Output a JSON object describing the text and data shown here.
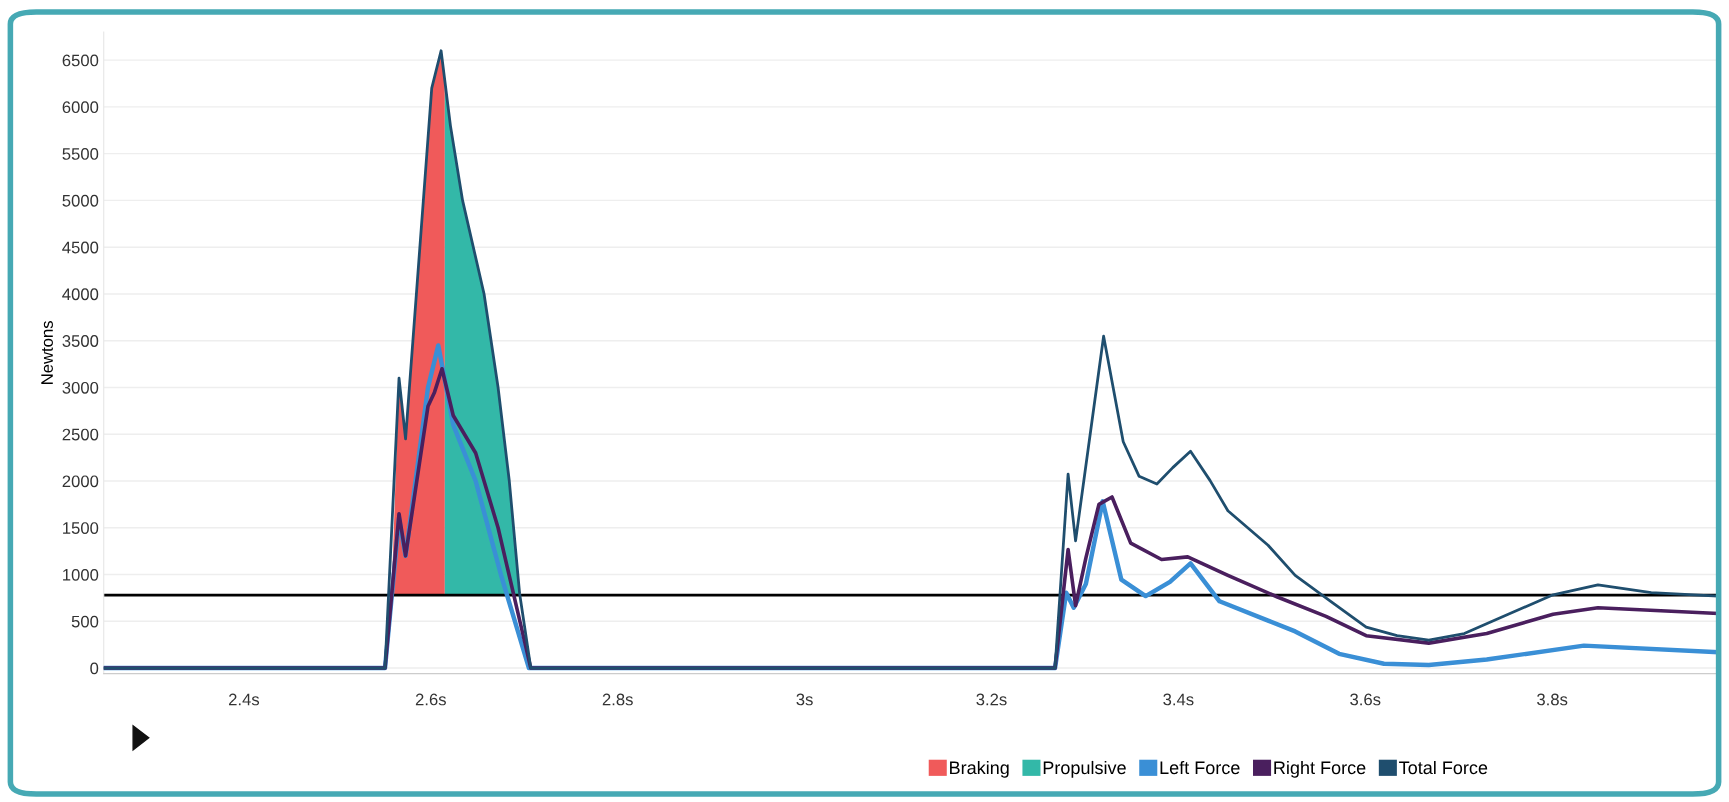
{
  "chart_data": {
    "type": "line",
    "ylabel": "Newtons",
    "xlim": [
      2.25,
      3.98
    ],
    "ylim": [
      -60,
      6800
    ],
    "xticks": [
      {
        "value": 2.4,
        "label": "2.4s"
      },
      {
        "value": 2.6,
        "label": "2.6s"
      },
      {
        "value": 2.8,
        "label": "2.8s"
      },
      {
        "value": 3,
        "label": "3s"
      },
      {
        "value": 3.2,
        "label": "3.2s"
      },
      {
        "value": 3.4,
        "label": "3.4s"
      },
      {
        "value": 3.6,
        "label": "3.6s"
      },
      {
        "value": 3.8,
        "label": "3.8s"
      }
    ],
    "yticks": [
      0,
      500,
      1000,
      1500,
      2000,
      2500,
      3000,
      3500,
      4000,
      4500,
      5000,
      5500,
      6000,
      6500
    ],
    "grid": "y",
    "legend": "bottom right",
    "marker": "none",
    "line_style": "solid",
    "ref_lines": [
      {
        "axis": "y",
        "value": 780,
        "color": "#000000",
        "line_style": "solid"
      }
    ],
    "series": [
      {
        "name": "Braking",
        "type": "area",
        "color": "#f05a5a",
        "x": [
          2.558,
          2.566,
          2.573,
          2.601,
          2.611,
          2.615
        ],
        "values": [
          780,
          3100,
          2450,
          6200,
          6600,
          6300
        ]
      },
      {
        "name": "Propulsive",
        "type": "area",
        "color": "#33b8a8",
        "x": [
          2.615,
          2.621,
          2.634,
          2.657,
          2.672,
          2.684,
          2.695
        ],
        "values": [
          6300,
          5800,
          5000,
          4000,
          3000,
          2000,
          780
        ]
      },
      {
        "name": "Left Force",
        "color": "#3a8fd6",
        "x": [
          2.25,
          2.551,
          2.566,
          2.573,
          2.597,
          2.608,
          2.624,
          2.648,
          2.675,
          2.705,
          3.268,
          3.28,
          3.288,
          3.301,
          3.319,
          3.339,
          3.365,
          3.391,
          3.413,
          3.444,
          3.496,
          3.525,
          3.572,
          3.62,
          3.668,
          3.73,
          3.834,
          3.976
        ],
        "values": [
          0,
          0,
          1600,
          1200,
          3000,
          3450,
          2600,
          2000,
          1000,
          0,
          0,
          806,
          645,
          899,
          1783,
          945,
          770,
          922,
          1120,
          714,
          507,
          392,
          152,
          46,
          32,
          92,
          240,
          170
        ]
      },
      {
        "name": "Right Force",
        "color": "#4a1f5e",
        "x": [
          2.25,
          2.551,
          2.566,
          2.573,
          2.597,
          2.604,
          2.612,
          2.624,
          2.648,
          2.672,
          2.693,
          2.707,
          3.268,
          3.282,
          3.29,
          3.301,
          3.315,
          3.329,
          3.349,
          3.382,
          3.41,
          3.453,
          3.506,
          3.558,
          3.601,
          3.668,
          3.73,
          3.801,
          3.849,
          3.976
        ],
        "values": [
          0,
          0,
          1650,
          1200,
          2800,
          2950,
          3200,
          2700,
          2300,
          1500,
          600,
          0,
          0,
          1267,
          668,
          1175,
          1751,
          1829,
          1336,
          1161,
          1189,
          991,
          760,
          553,
          346,
          267,
          369,
          576,
          645,
          585
        ]
      },
      {
        "name": "Total Force",
        "color": "#1f4e6e",
        "x": [
          2.25,
          2.551,
          2.566,
          2.573,
          2.601,
          2.611,
          2.621,
          2.634,
          2.657,
          2.672,
          2.684,
          2.695,
          2.707,
          3.268,
          3.282,
          3.29,
          3.32,
          3.341,
          3.358,
          3.377,
          3.394,
          3.413,
          3.434,
          3.453,
          3.496,
          3.525,
          3.563,
          3.601,
          3.634,
          3.668,
          3.706,
          3.753,
          3.801,
          3.849,
          3.906,
          3.976
        ],
        "values": [
          0,
          0,
          3100,
          2450,
          6200,
          6600,
          5800,
          5000,
          4000,
          3000,
          2000,
          800,
          0,
          0,
          2074,
          1360,
          3548,
          2420,
          2050,
          1968,
          2143,
          2318,
          2004,
          1682,
          1313,
          991,
          714,
          438,
          346,
          300,
          369,
          576,
          783,
          889,
          806,
          770
        ]
      }
    ]
  }
}
